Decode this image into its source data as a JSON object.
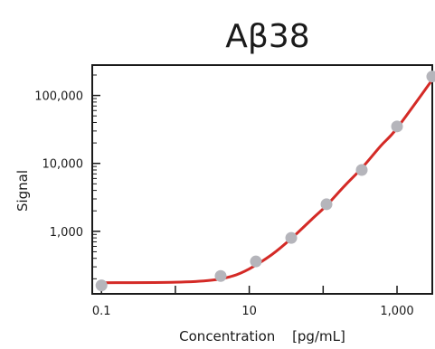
{
  "chart_data": {
    "type": "scatter",
    "title": "Aβ38",
    "xlabel": "Concentration",
    "xunit": "[pg/mL]",
    "ylabel": "Signal",
    "xscale": "log",
    "yscale": "log",
    "xlim": [
      0.075,
      3000
    ],
    "ylim": [
      120,
      280000
    ],
    "xticks": [
      {
        "value": 0.1,
        "label": "0.1"
      },
      {
        "value": 10,
        "label": "10"
      },
      {
        "value": 1000,
        "label": "1,000"
      }
    ],
    "yticks": [
      {
        "value": 1000,
        "label": "1,000"
      },
      {
        "value": 10000,
        "label": "10,000"
      },
      {
        "value": 100000,
        "label": "100,000"
      }
    ],
    "grid": false,
    "series": [
      {
        "x": [
          0.1,
          4.1,
          12.3,
          37,
          111,
          333,
          1000,
          3000
        ],
        "y": [
          160,
          220,
          360,
          800,
          2500,
          8000,
          35000,
          190000
        ]
      }
    ],
    "fit_curve": {
      "x": [
        0.1,
        1,
        3,
        6,
        10,
        20,
        37,
        70,
        111,
        200,
        333,
        600,
        1000,
        3000
      ],
      "y": [
        175,
        178,
        190,
        220,
        280,
        450,
        780,
        1500,
        2400,
        4800,
        8500,
        18000,
        33000,
        170000
      ]
    },
    "colors": {
      "points": "#b5b5bb",
      "curve": "#d42a26",
      "axes": "#1a1a1a"
    }
  }
}
